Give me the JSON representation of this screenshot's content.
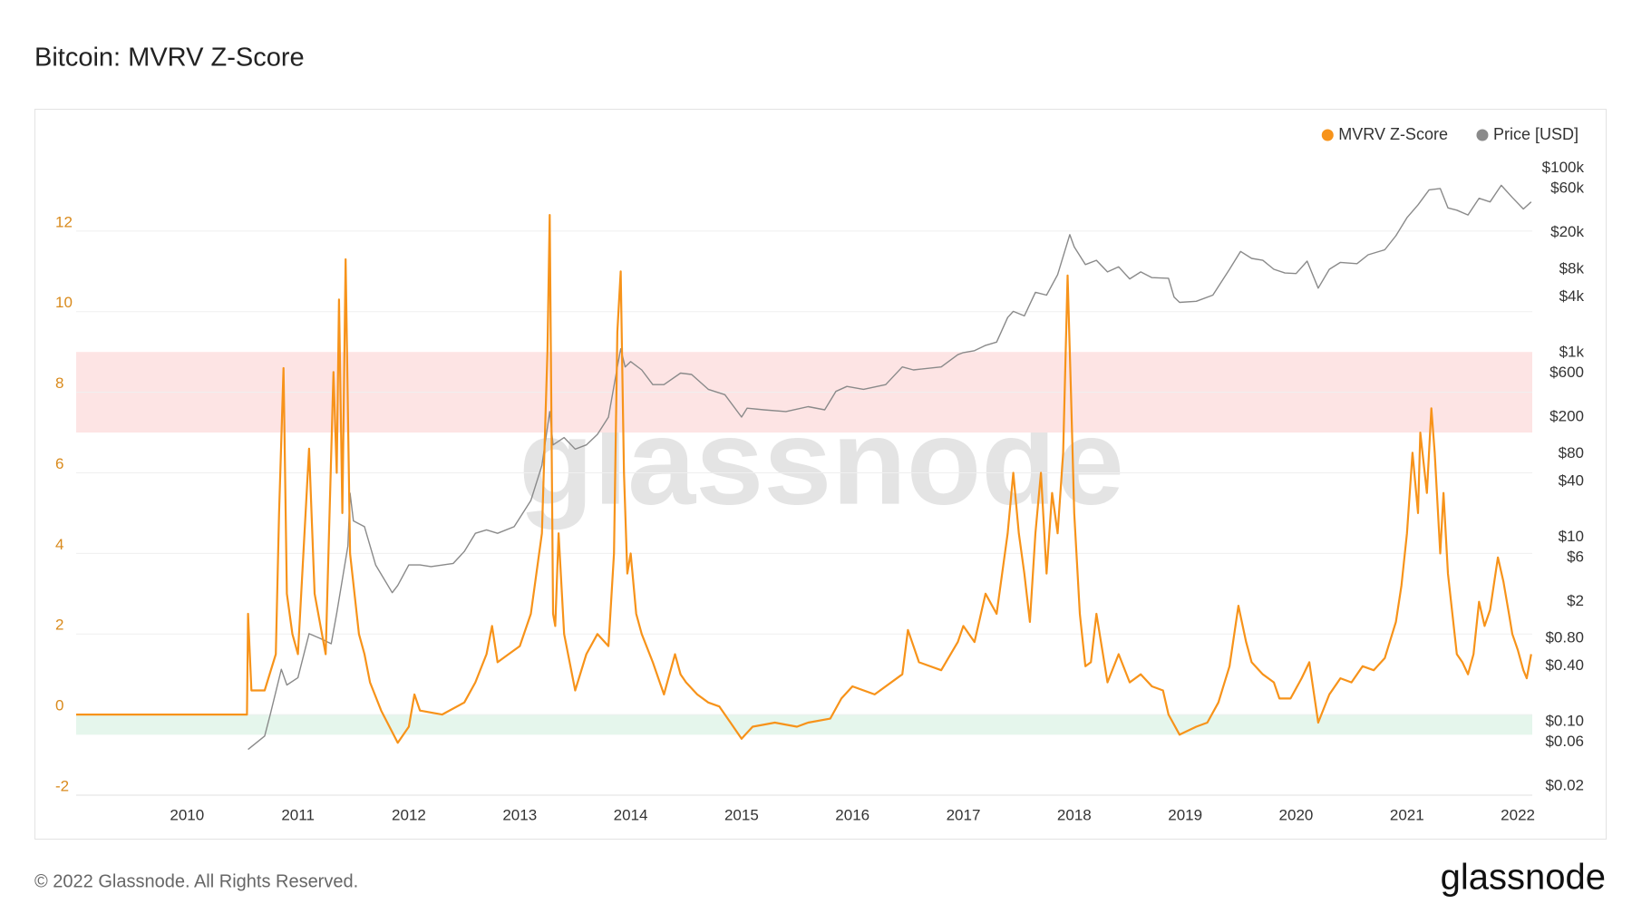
{
  "chart_data": {
    "type": "line",
    "title": "Bitcoin: MVRV Z-Score",
    "watermark": "glassnode",
    "footer": "© 2022 Glassnode. All Rights Reserved.",
    "logo": "glassnode",
    "legend": "top-right",
    "grid": true,
    "xlim": [
      2009,
      2022.13
    ],
    "xticks": [
      2010,
      2011,
      2012,
      2013,
      2014,
      2015,
      2016,
      2017,
      2018,
      2019,
      2020,
      2021,
      2022
    ],
    "ylim": [
      -2,
      14
    ],
    "yticks": [
      -2,
      0,
      2,
      4,
      6,
      8,
      10,
      12
    ],
    "y2lim": [
      0.016,
      155000
    ],
    "y2log": true,
    "y2ticks": [
      {
        "value": 100000,
        "label": "$100k"
      },
      {
        "value": 60000,
        "label": "$60k"
      },
      {
        "value": 20000,
        "label": "$20k"
      },
      {
        "value": 8000,
        "label": "$8k"
      },
      {
        "value": 4000,
        "label": "$4k"
      },
      {
        "value": 1000,
        "label": "$1k"
      },
      {
        "value": 600,
        "label": "$600"
      },
      {
        "value": 200,
        "label": "$200"
      },
      {
        "value": 80,
        "label": "$80"
      },
      {
        "value": 40,
        "label": "$40"
      },
      {
        "value": 10,
        "label": "$10"
      },
      {
        "value": 6,
        "label": "$6"
      },
      {
        "value": 2,
        "label": "$2"
      },
      {
        "value": 0.8,
        "label": "$0.80"
      },
      {
        "value": 0.4,
        "label": "$0.40"
      },
      {
        "value": 0.1,
        "label": "$0.10"
      },
      {
        "value": 0.06,
        "label": "$0.06"
      },
      {
        "value": 0.02,
        "label": "$0.02"
      }
    ],
    "bands": [
      {
        "from": 7,
        "to": 9,
        "color": "#fde4e4"
      },
      {
        "from": -0.5,
        "to": 0,
        "color": "#e5f6ec"
      }
    ],
    "series": [
      {
        "name": "MVRV Z-Score",
        "color": "#f7931a",
        "x": [
          2009.0,
          2010.54,
          2010.55,
          2010.58,
          2010.7,
          2010.8,
          2010.83,
          2010.87,
          2010.9,
          2010.95,
          2011.0,
          2011.1,
          2011.15,
          2011.25,
          2011.32,
          2011.35,
          2011.37,
          2011.4,
          2011.43,
          2011.47,
          2011.55,
          2011.6,
          2011.65,
          2011.75,
          2011.9,
          2012.0,
          2012.05,
          2012.1,
          2012.3,
          2012.5,
          2012.6,
          2012.7,
          2012.75,
          2012.8,
          2012.9,
          2013.0,
          2013.1,
          2013.2,
          2013.25,
          2013.27,
          2013.3,
          2013.32,
          2013.35,
          2013.4,
          2013.5,
          2013.6,
          2013.7,
          2013.8,
          2013.85,
          2013.88,
          2013.91,
          2013.94,
          2013.97,
          2014.0,
          2014.05,
          2014.1,
          2014.2,
          2014.3,
          2014.4,
          2014.45,
          2014.5,
          2014.6,
          2014.7,
          2014.8,
          2014.9,
          2015.0,
          2015.1,
          2015.3,
          2015.5,
          2015.6,
          2015.8,
          2015.9,
          2016.0,
          2016.2,
          2016.45,
          2016.5,
          2016.6,
          2016.8,
          2016.95,
          2017.0,
          2017.1,
          2017.2,
          2017.3,
          2017.4,
          2017.45,
          2017.5,
          2017.55,
          2017.6,
          2017.65,
          2017.7,
          2017.75,
          2017.8,
          2017.85,
          2017.9,
          2017.94,
          2017.97,
          2018.0,
          2018.05,
          2018.1,
          2018.15,
          2018.2,
          2018.3,
          2018.4,
          2018.5,
          2018.6,
          2018.7,
          2018.8,
          2018.85,
          2018.95,
          2019.1,
          2019.2,
          2019.3,
          2019.4,
          2019.48,
          2019.55,
          2019.6,
          2019.7,
          2019.8,
          2019.85,
          2019.95,
          2020.05,
          2020.12,
          2020.2,
          2020.3,
          2020.4,
          2020.5,
          2020.6,
          2020.7,
          2020.8,
          2020.9,
          2020.95,
          2021.0,
          2021.05,
          2021.1,
          2021.12,
          2021.18,
          2021.22,
          2021.25,
          2021.3,
          2021.33,
          2021.37,
          2021.45,
          2021.5,
          2021.55,
          2021.6,
          2021.65,
          2021.7,
          2021.75,
          2021.82,
          2021.87,
          2021.92,
          2021.95,
          2022.0,
          2022.05,
          2022.08,
          2022.12
        ],
        "values": [
          0,
          0,
          2.5,
          0.6,
          0.6,
          1.5,
          5,
          8.6,
          3,
          2,
          1.5,
          6.6,
          3,
          1.5,
          8.5,
          6,
          10.3,
          5,
          11.3,
          4,
          2,
          1.5,
          0.8,
          0.1,
          -0.7,
          -0.3,
          0.5,
          0.1,
          0,
          0.3,
          0.8,
          1.5,
          2.2,
          1.3,
          1.5,
          1.7,
          2.5,
          4.5,
          9,
          12.4,
          2.5,
          2.2,
          4.5,
          2,
          0.6,
          1.5,
          2,
          1.7,
          4,
          9.5,
          11,
          6,
          3.5,
          4,
          2.5,
          2,
          1.3,
          0.5,
          1.5,
          1,
          0.8,
          0.5,
          0.3,
          0.2,
          -0.2,
          -0.6,
          -0.3,
          -0.2,
          -0.3,
          -0.2,
          -0.1,
          0.4,
          0.7,
          0.5,
          1,
          2.1,
          1.3,
          1.1,
          1.8,
          2.2,
          1.8,
          3,
          2.5,
          4.5,
          6,
          4.5,
          3.5,
          2.3,
          4.5,
          6,
          3.5,
          5.5,
          4.5,
          6.5,
          10.9,
          8,
          5,
          2.5,
          1.2,
          1.3,
          2.5,
          0.8,
          1.5,
          0.8,
          1,
          0.7,
          0.6,
          0,
          -0.5,
          -0.3,
          -0.2,
          0.3,
          1.2,
          2.7,
          1.8,
          1.3,
          1,
          0.8,
          0.4,
          0.4,
          0.9,
          1.3,
          -0.2,
          0.5,
          0.9,
          0.8,
          1.2,
          1.1,
          1.4,
          2.3,
          3.2,
          4.5,
          6.5,
          5,
          7,
          5.5,
          7.6,
          6.5,
          4,
          5.5,
          3.5,
          1.5,
          1.3,
          1,
          1.5,
          2.8,
          2.2,
          2.6,
          3.9,
          3.3,
          2.5,
          2,
          1.6,
          1.1,
          0.9,
          1.5
        ]
      },
      {
        "name": "Price [USD]",
        "color": "#8a8a8a",
        "axis": "y2",
        "x": [
          2010.55,
          2010.7,
          2010.75,
          2010.85,
          2010.9,
          2011.0,
          2011.1,
          2011.2,
          2011.3,
          2011.35,
          2011.45,
          2011.47,
          2011.5,
          2011.6,
          2011.7,
          2011.85,
          2011.9,
          2012.0,
          2012.1,
          2012.2,
          2012.4,
          2012.5,
          2012.6,
          2012.7,
          2012.8,
          2012.95,
          2013.1,
          2013.2,
          2013.27,
          2013.3,
          2013.4,
          2013.5,
          2013.6,
          2013.7,
          2013.8,
          2013.88,
          2013.91,
          2013.95,
          2014.0,
          2014.1,
          2014.2,
          2014.3,
          2014.45,
          2014.55,
          2014.7,
          2014.85,
          2015.0,
          2015.05,
          2015.2,
          2015.4,
          2015.6,
          2015.75,
          2015.85,
          2015.95,
          2016.1,
          2016.3,
          2016.45,
          2016.55,
          2016.8,
          2016.95,
          2017.0,
          2017.1,
          2017.2,
          2017.3,
          2017.4,
          2017.45,
          2017.55,
          2017.65,
          2017.75,
          2017.85,
          2017.96,
          2018.0,
          2018.1,
          2018.2,
          2018.3,
          2018.4,
          2018.5,
          2018.6,
          2018.7,
          2018.85,
          2018.9,
          2018.95,
          2019.1,
          2019.25,
          2019.4,
          2019.5,
          2019.6,
          2019.7,
          2019.8,
          2019.9,
          2020.0,
          2020.1,
          2020.2,
          2020.3,
          2020.4,
          2020.55,
          2020.65,
          2020.8,
          2020.9,
          2021.0,
          2021.1,
          2021.2,
          2021.3,
          2021.37,
          2021.45,
          2021.55,
          2021.65,
          2021.75,
          2021.85,
          2021.95,
          2022.05,
          2022.12
        ],
        "values": [
          0.05,
          0.07,
          0.12,
          0.37,
          0.25,
          0.3,
          0.9,
          0.8,
          0.7,
          1.5,
          8,
          30,
          15,
          13,
          5,
          2.5,
          3,
          5,
          5,
          4.8,
          5.2,
          7,
          11,
          12,
          11,
          13,
          25,
          60,
          230,
          100,
          120,
          90,
          100,
          130,
          200,
          700,
          1100,
          700,
          800,
          650,
          450,
          450,
          600,
          580,
          400,
          350,
          200,
          250,
          240,
          230,
          260,
          240,
          380,
          430,
          400,
          450,
          700,
          650,
          700,
          950,
          1000,
          1050,
          1200,
          1300,
          2400,
          2800,
          2500,
          4500,
          4200,
          7000,
          19000,
          14000,
          9000,
          10000,
          7500,
          8500,
          6300,
          7500,
          6500,
          6400,
          4000,
          3500,
          3600,
          4200,
          8000,
          12500,
          10500,
          10000,
          8000,
          7300,
          7200,
          9800,
          5000,
          8000,
          9500,
          9200,
          11500,
          13000,
          18500,
          29000,
          40000,
          58000,
          60000,
          37000,
          35000,
          31000,
          47000,
          43000,
          65000,
          48000,
          36000,
          43000
        ]
      }
    ]
  }
}
